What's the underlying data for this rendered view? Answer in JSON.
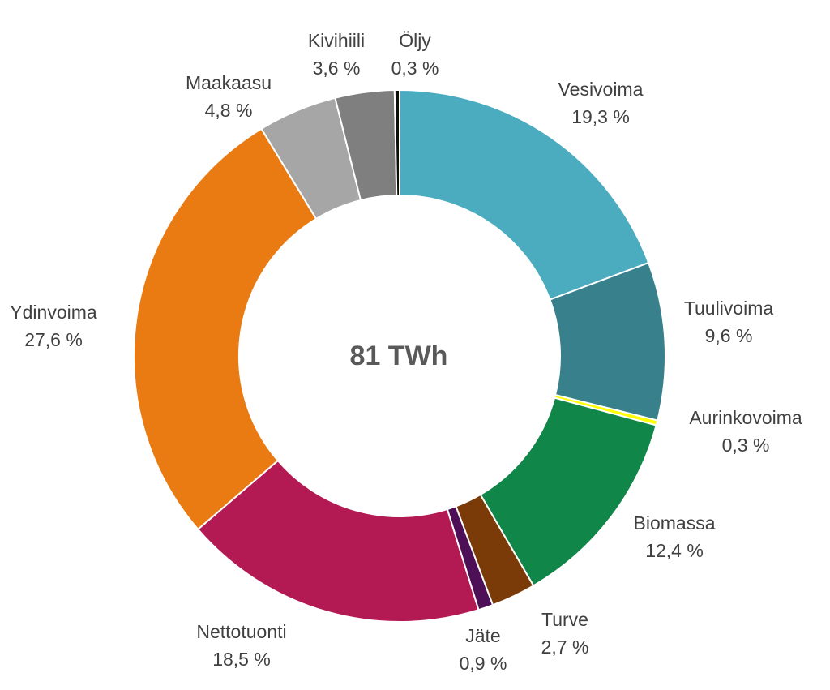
{
  "chart_data": {
    "type": "pie",
    "variant": "donut",
    "center_label": "81 TWh",
    "start": "12 o'clock",
    "direction": "clockwise",
    "slices": [
      {
        "name": "Vesivoima",
        "value": 19.3,
        "value_label": "19,3 %",
        "color": "#4bacc0"
      },
      {
        "name": "Tuulivoima",
        "value": 9.6,
        "value_label": "9,6 %",
        "color": "#37808c"
      },
      {
        "name": "Aurinkovoima",
        "value": 0.3,
        "value_label": "0,3 %",
        "color": "#ffff00"
      },
      {
        "name": "Biomassa",
        "value": 12.4,
        "value_label": "12,4 %",
        "color": "#118649"
      },
      {
        "name": "Turve",
        "value": 2.7,
        "value_label": "2,7 %",
        "color": "#7a3b08"
      },
      {
        "name": "Jäte",
        "value": 0.9,
        "value_label": "0,9 %",
        "color": "#4d0f56"
      },
      {
        "name": "Nettotuonti",
        "value": 18.5,
        "value_label": "18,5 %",
        "color": "#b31a54"
      },
      {
        "name": "Ydinvoima",
        "value": 27.6,
        "value_label": "27,6 %",
        "color": "#e97b12"
      },
      {
        "name": "Maakaasu",
        "value": 4.8,
        "value_label": "4,8 %",
        "color": "#a6a6a6"
      },
      {
        "name": "Kivihiili",
        "value": 3.6,
        "value_label": "3,6 %",
        "color": "#7f7f7f"
      },
      {
        "name": "Öljy",
        "value": 0.3,
        "value_label": "0,3 %",
        "color": "#0d0d0d"
      }
    ]
  }
}
